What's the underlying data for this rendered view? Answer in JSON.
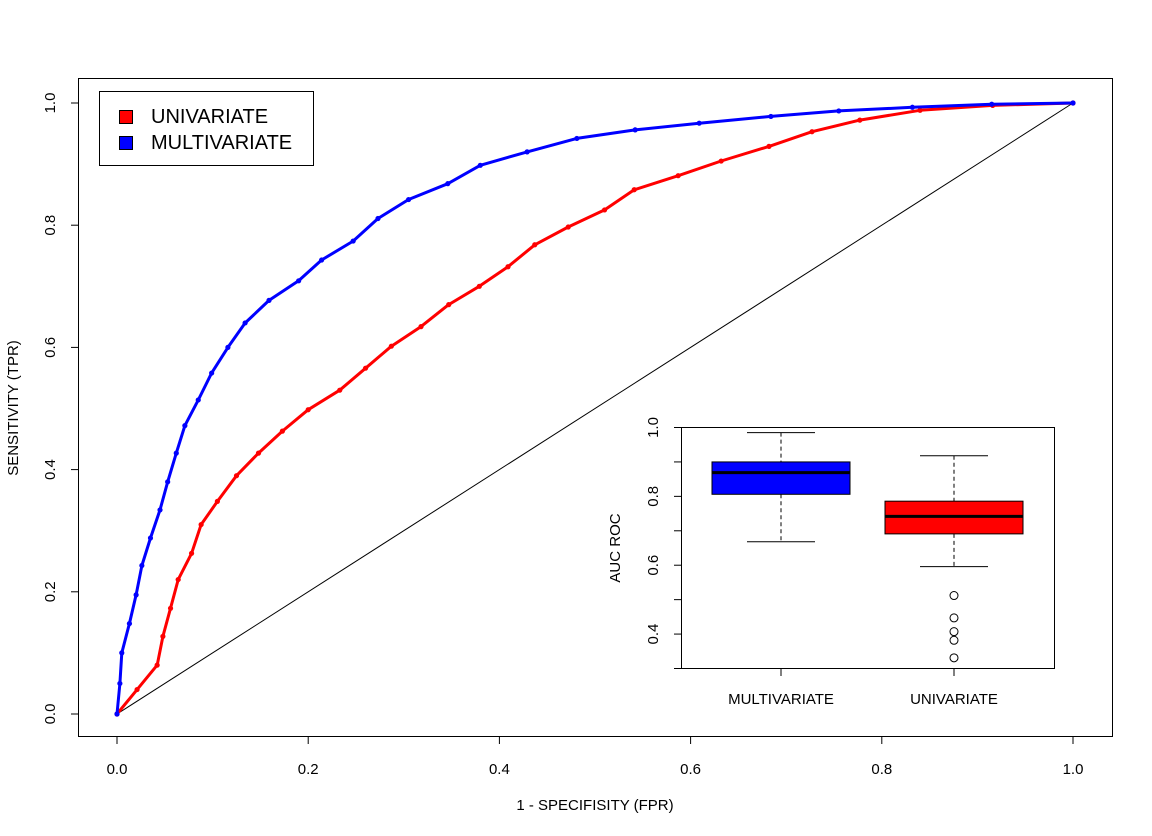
{
  "chart_data": [
    {
      "type": "line",
      "xlabel": "1 - SPECIFISITY (FPR)",
      "ylabel": "SENSITIVITY (TPR)",
      "xlim": [
        0,
        1
      ],
      "ylim": [
        0,
        1
      ],
      "x_ticks": [
        "0.0",
        "0.2",
        "0.4",
        "0.6",
        "0.8",
        "1.0"
      ],
      "y_ticks": [
        "0.0",
        "0.2",
        "0.4",
        "0.6",
        "0.8",
        "1.0"
      ],
      "legend_position": "top-left",
      "reference_line": [
        [
          0,
          0
        ],
        [
          1,
          1
        ]
      ],
      "series": [
        {
          "name": "UNIVARIATE",
          "color": "#ff0000",
          "points": [
            [
              0,
              0
            ],
            [
              0.021,
              0.04
            ],
            [
              0.042,
              0.08
            ],
            [
              0.048,
              0.127
            ],
            [
              0.056,
              0.173
            ],
            [
              0.064,
              0.22
            ],
            [
              0.078,
              0.263
            ],
            [
              0.088,
              0.31
            ],
            [
              0.105,
              0.348
            ],
            [
              0.125,
              0.39
            ],
            [
              0.148,
              0.427
            ],
            [
              0.173,
              0.463
            ],
            [
              0.2,
              0.498
            ],
            [
              0.233,
              0.53
            ],
            [
              0.26,
              0.566
            ],
            [
              0.287,
              0.602
            ],
            [
              0.318,
              0.634
            ],
            [
              0.347,
              0.67
            ],
            [
              0.379,
              0.7
            ],
            [
              0.409,
              0.732
            ],
            [
              0.437,
              0.768
            ],
            [
              0.472,
              0.797
            ],
            [
              0.51,
              0.825
            ],
            [
              0.541,
              0.858
            ],
            [
              0.587,
              0.881
            ],
            [
              0.632,
              0.905
            ],
            [
              0.682,
              0.929
            ],
            [
              0.727,
              0.953
            ],
            [
              0.777,
              0.972
            ],
            [
              0.84,
              0.988
            ],
            [
              0.916,
              0.996
            ],
            [
              1,
              1
            ]
          ]
        },
        {
          "name": "MULTIVARIATE",
          "color": "#0000ff",
          "points": [
            [
              0,
              0
            ],
            [
              0.003,
              0.05
            ],
            [
              0.005,
              0.1
            ],
            [
              0.013,
              0.148
            ],
            [
              0.02,
              0.195
            ],
            [
              0.026,
              0.243
            ],
            [
              0.035,
              0.288
            ],
            [
              0.045,
              0.334
            ],
            [
              0.053,
              0.38
            ],
            [
              0.062,
              0.427
            ],
            [
              0.071,
              0.472
            ],
            [
              0.085,
              0.514
            ],
            [
              0.099,
              0.558
            ],
            [
              0.116,
              0.6
            ],
            [
              0.134,
              0.64
            ],
            [
              0.159,
              0.677
            ],
            [
              0.19,
              0.709
            ],
            [
              0.214,
              0.743
            ],
            [
              0.247,
              0.774
            ],
            [
              0.273,
              0.811
            ],
            [
              0.305,
              0.842
            ],
            [
              0.346,
              0.868
            ],
            [
              0.38,
              0.898
            ],
            [
              0.429,
              0.92
            ],
            [
              0.481,
              0.942
            ],
            [
              0.542,
              0.956
            ],
            [
              0.609,
              0.967
            ],
            [
              0.684,
              0.978
            ],
            [
              0.755,
              0.987
            ],
            [
              0.832,
              0.993
            ],
            [
              0.915,
              0.998
            ],
            [
              1,
              1
            ]
          ]
        }
      ]
    },
    {
      "type": "box",
      "ylabel": "AUC ROC",
      "ylim": [
        0.3,
        1.0
      ],
      "y_ticks": [
        "0.4",
        "0.6",
        "0.8",
        "1.0"
      ],
      "categories": [
        "MULTIVARIATE",
        "UNIVARIATE"
      ],
      "boxes": [
        {
          "name": "MULTIVARIATE",
          "color": "#0000ff",
          "whisker_low": 0.668,
          "q1": 0.806,
          "median": 0.869,
          "q3": 0.9,
          "whisker_high": 0.985,
          "outliers": []
        },
        {
          "name": "UNIVARIATE",
          "color": "#ff0000",
          "whisker_low": 0.596,
          "q1": 0.691,
          "median": 0.742,
          "q3": 0.786,
          "whisker_high": 0.918,
          "outliers": [
            0.512,
            0.447,
            0.407,
            0.382,
            0.331
          ]
        }
      ]
    }
  ]
}
